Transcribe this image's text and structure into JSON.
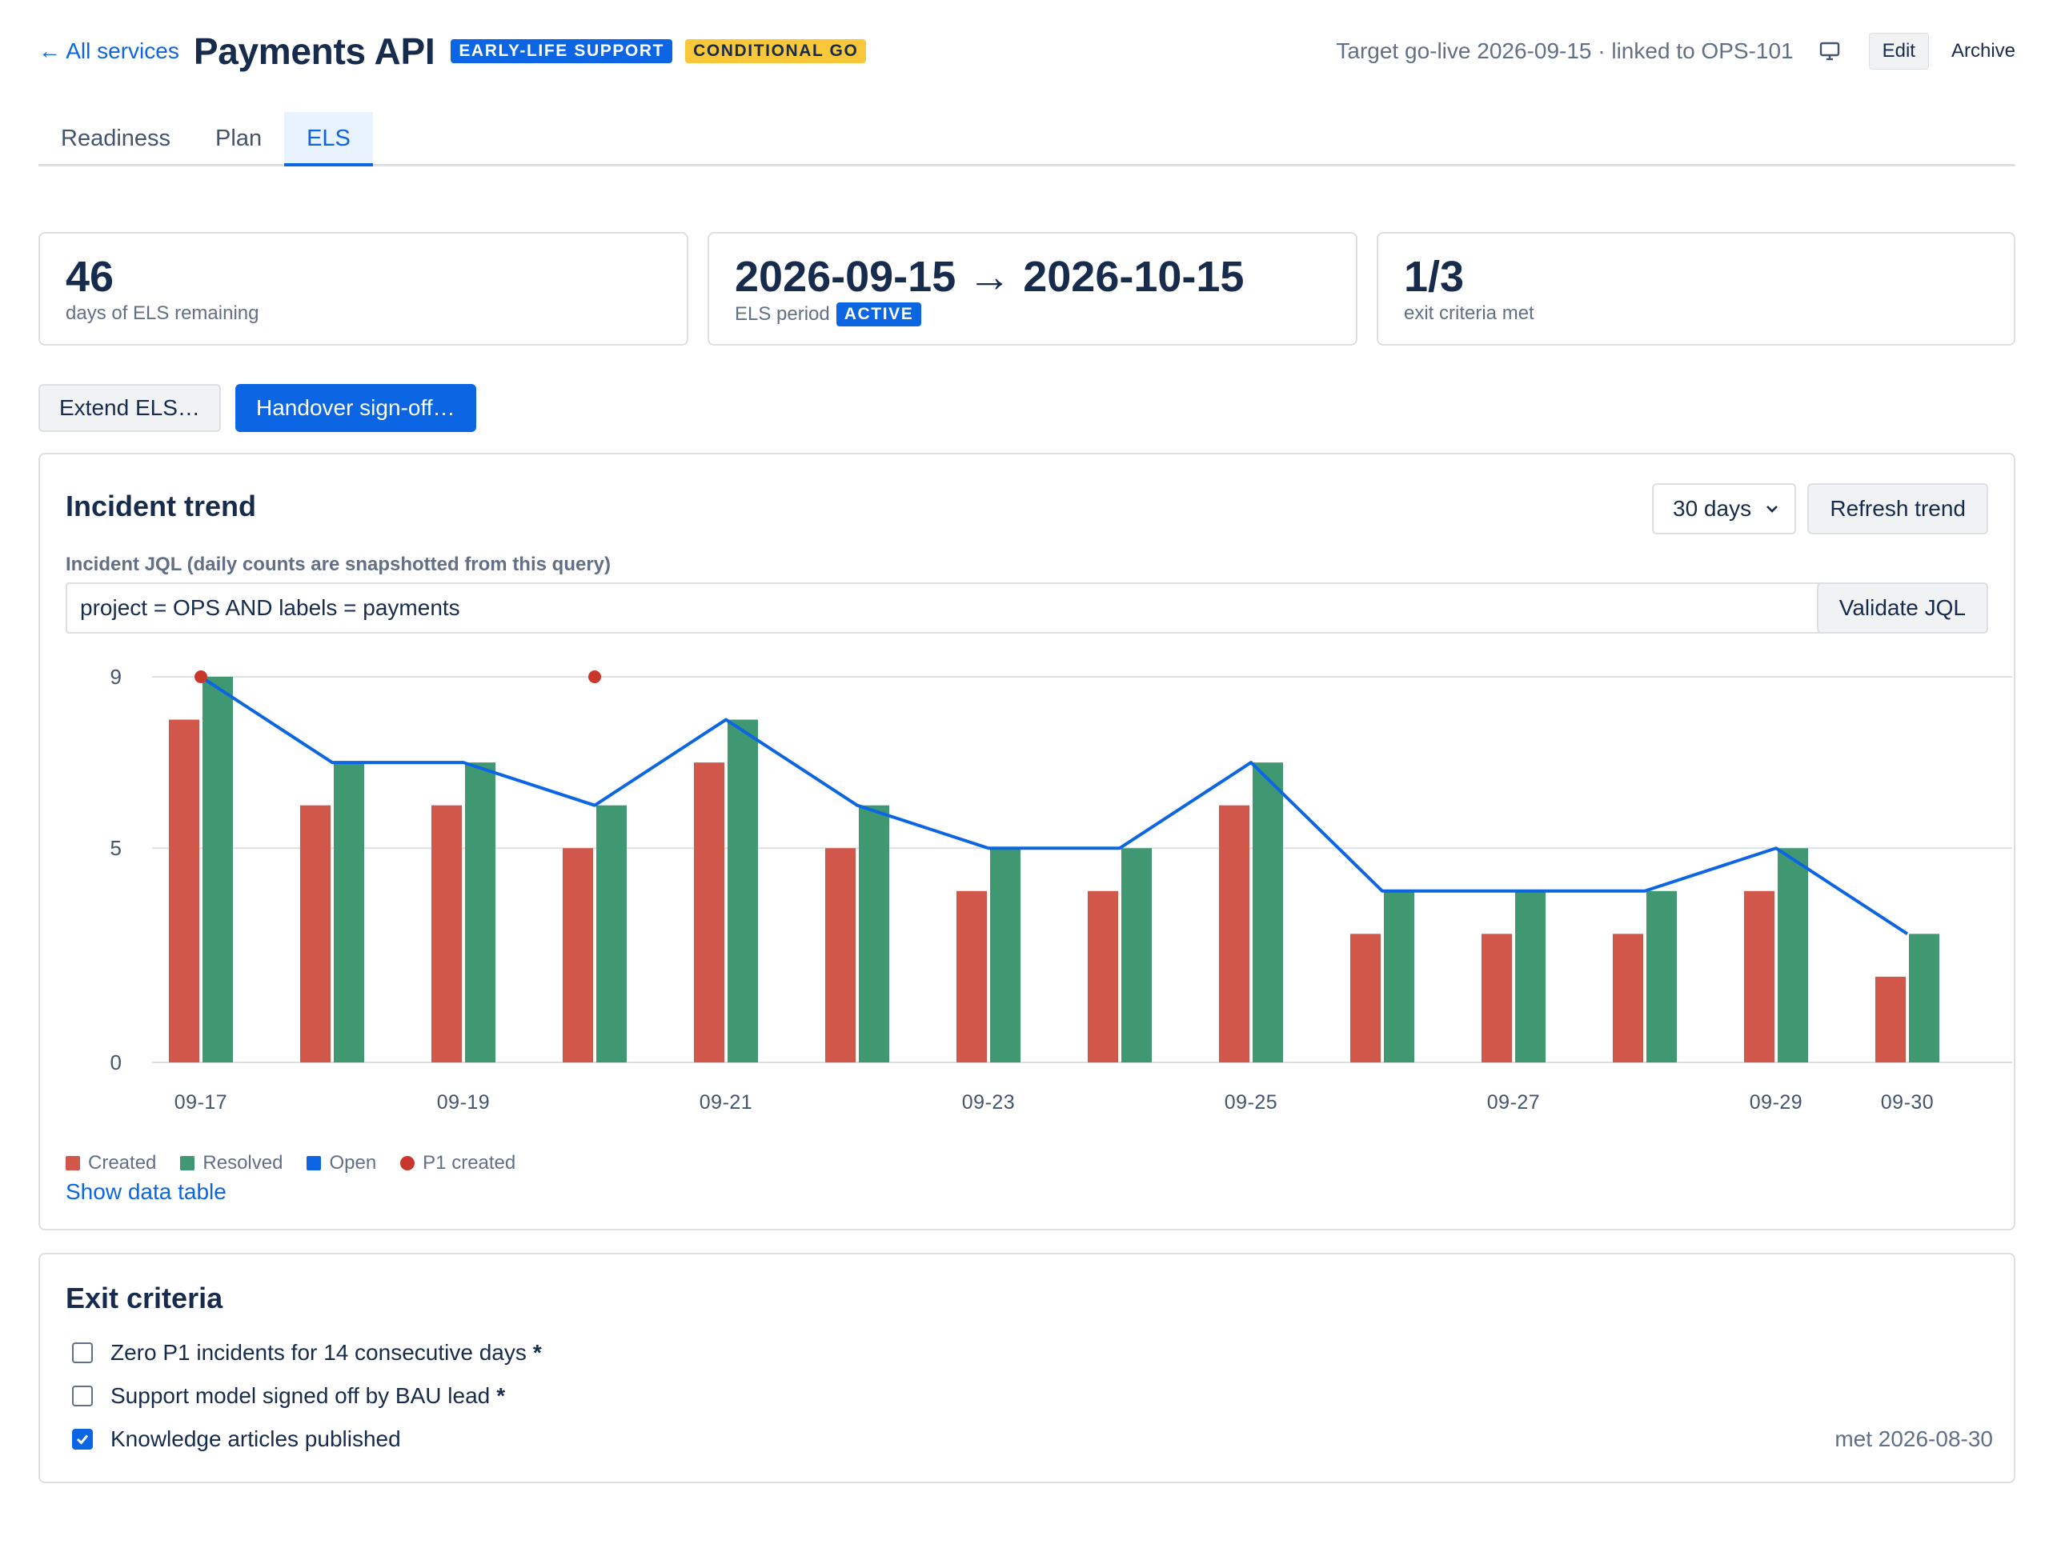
{
  "header": {
    "back_link": "← All services",
    "title": "Payments API",
    "badges": [
      "EARLY-LIFE SUPPORT",
      "CONDITIONAL GO"
    ],
    "meta": "Target go-live 2026-09-15 · linked to OPS-101",
    "edit_label": "Edit",
    "archive_label": "Archive"
  },
  "tabs": [
    {
      "label": "Readiness",
      "active": false
    },
    {
      "label": "Plan",
      "active": false
    },
    {
      "label": "ELS",
      "active": true
    }
  ],
  "stats": {
    "remaining": {
      "value": "46",
      "label": "days of ELS remaining"
    },
    "period": {
      "value": "2026-09-15 → 2026-10-15",
      "label": "ELS period",
      "badge": "ACTIVE"
    },
    "criteria": {
      "value": "1/3",
      "label": "exit criteria met"
    }
  },
  "actions": {
    "extend": "Extend ELS…",
    "handover": "Handover sign-off…"
  },
  "trend": {
    "title": "Incident trend",
    "range_select": "30 days",
    "refresh_label": "Refresh trend",
    "jql_label": "Incident JQL (daily counts are snapshotted from this query)",
    "jql_value": "project = OPS AND labels = payments",
    "validate_label": "Validate JQL",
    "show_table": "Show data table"
  },
  "chart_data": {
    "type": "bar",
    "categories": [
      "09-17",
      "09-18",
      "09-19",
      "09-20",
      "09-21",
      "09-22",
      "09-23",
      "09-24",
      "09-25",
      "09-26",
      "09-27",
      "09-28",
      "09-29",
      "09-30"
    ],
    "tick_labels": [
      "09-17",
      "",
      "09-19",
      "",
      "09-21",
      "",
      "09-23",
      "",
      "09-25",
      "",
      "09-27",
      "",
      "09-29",
      "09-30"
    ],
    "series": [
      {
        "name": "Created",
        "kind": "bar",
        "color": "#d1574a",
        "values": [
          8,
          6,
          6,
          5,
          7,
          5,
          4,
          4,
          6,
          3,
          3,
          3,
          4,
          2
        ]
      },
      {
        "name": "Resolved",
        "kind": "bar",
        "color": "#3f9871",
        "values": [
          9,
          7,
          7,
          6,
          8,
          6,
          5,
          5,
          7,
          4,
          4,
          4,
          5,
          3
        ]
      },
      {
        "name": "Open",
        "kind": "line",
        "color": "#0c66e4",
        "values": [
          9,
          7,
          7,
          6,
          8,
          6,
          5,
          5,
          7,
          4,
          4,
          4,
          5,
          3
        ]
      },
      {
        "name": "P1 created",
        "kind": "point",
        "color": "#c9372c",
        "points": [
          {
            "x": "09-17",
            "y": 9
          },
          {
            "x": "09-20",
            "y": 9
          }
        ]
      }
    ],
    "yticks": [
      "0",
      "5",
      "9"
    ],
    "ylim": [
      0,
      9
    ],
    "grid": true,
    "legend": "bottom-left"
  },
  "exit_criteria": {
    "title": "Exit criteria",
    "items": [
      {
        "label": "Zero P1 incidents for 14 consecutive days",
        "required": "*",
        "checked": false,
        "met": ""
      },
      {
        "label": "Support model signed off by BAU lead",
        "required": "*",
        "checked": false,
        "met": ""
      },
      {
        "label": "Knowledge articles published",
        "required": "",
        "checked": true,
        "met": "met 2026-08-30"
      }
    ]
  }
}
